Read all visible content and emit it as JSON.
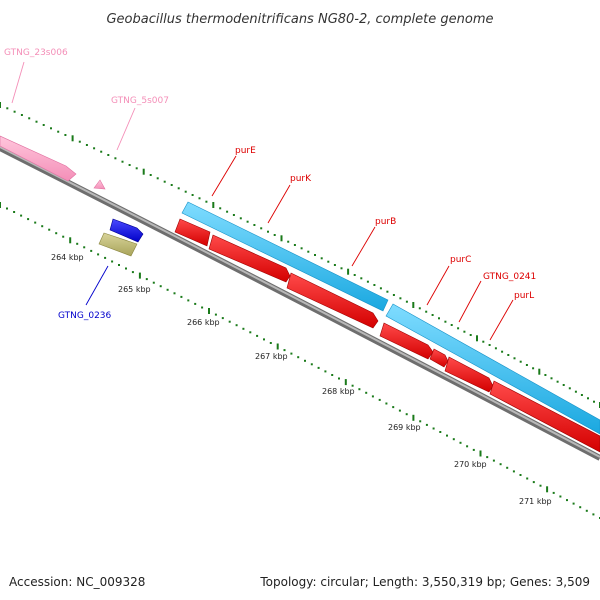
{
  "title": "Geobacillus thermodenitrificans NG80-2, complete genome",
  "footer": {
    "accession": "Accession: NC_009328",
    "summary": "Topology: circular; Length: 3,550,319 bp; Genes: 3,509"
  },
  "scale_labels": [
    "264 kbp",
    "265 kbp",
    "266 kbp",
    "267 kbp",
    "268 kbp",
    "269 kbp",
    "270 kbp",
    "271 kbp"
  ],
  "gene_labels": [
    {
      "name": "GTNG_23s006",
      "color": "#f48fb8"
    },
    {
      "name": "GTNG_5s007",
      "color": "#f48fb8"
    },
    {
      "name": "purE",
      "color": "#dd0000"
    },
    {
      "name": "purK",
      "color": "#dd0000"
    },
    {
      "name": "purB",
      "color": "#dd0000"
    },
    {
      "name": "purC",
      "color": "#dd0000"
    },
    {
      "name": "GTNG_0241",
      "color": "#dd0000"
    },
    {
      "name": "purL",
      "color": "#dd0000"
    },
    {
      "name": "GTNG_0236",
      "color": "#0000cc"
    }
  ],
  "colors": {
    "backbone": "#8a8a8a",
    "ticks": "#1a7a1a",
    "rrna": "#f9a8c8",
    "cds_forward": "#28bff0",
    "cds_reverse": "#ee1111",
    "other_feature": "#bdb76b",
    "gene_blue": "#1010ee"
  }
}
